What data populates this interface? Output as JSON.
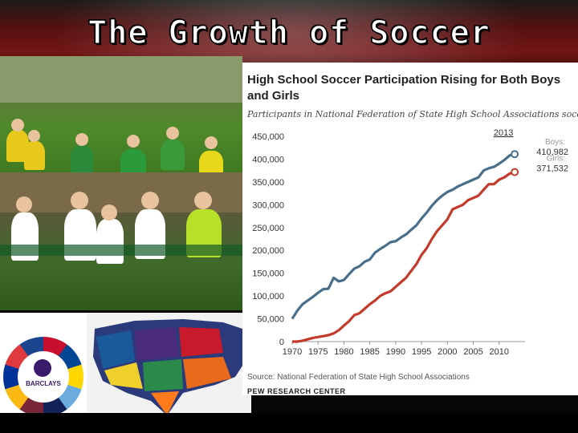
{
  "slide": {
    "title": "The Growth of Soccer"
  },
  "chart_data": {
    "type": "line",
    "title": "High School Soccer Participation Rising for Both Boys and Girls",
    "subtitle": "Participants in National Federation of State High School Associations soccer",
    "source": "Source: National Federation of State High School Associations",
    "org": "PEW RESEARCH CENTER",
    "x": [
      1970,
      1971,
      1972,
      1973,
      1974,
      1975,
      1976,
      1977,
      1978,
      1979,
      1980,
      1981,
      1982,
      1983,
      1984,
      1985,
      1986,
      1987,
      1988,
      1989,
      1990,
      1991,
      1992,
      1993,
      1994,
      1995,
      1996,
      1997,
      1998,
      1999,
      2000,
      2001,
      2002,
      2003,
      2004,
      2005,
      2006,
      2007,
      2008,
      2009,
      2010,
      2011,
      2012,
      2013
    ],
    "ylim": [
      0,
      450000
    ],
    "yticks": [
      0,
      50000,
      100000,
      150000,
      200000,
      250000,
      300000,
      350000,
      400000,
      450000
    ],
    "ytick_labels": [
      "0",
      "50,000",
      "100,000",
      "150,000",
      "200,000",
      "250,000",
      "300,000",
      "350,000",
      "400,000",
      "450,000"
    ],
    "xticks": [
      1970,
      1975,
      1980,
      1985,
      1990,
      1995,
      2000,
      2005,
      2010
    ],
    "xtick_labels": [
      "1970",
      "1975",
      "1980",
      "1985",
      "1990",
      "1995",
      "2000",
      "2005",
      "2010"
    ],
    "series": [
      {
        "name": "Boys",
        "color": "#4a6f8a",
        "values": [
          50000,
          68000,
          82000,
          90000,
          98000,
          107000,
          115000,
          116000,
          140000,
          132000,
          135000,
          148000,
          160000,
          165000,
          175000,
          180000,
          195000,
          203000,
          210000,
          218000,
          220000,
          228000,
          235000,
          245000,
          255000,
          270000,
          283000,
          298000,
          310000,
          320000,
          328000,
          333000,
          340000,
          345000,
          350000,
          355000,
          360000,
          375000,
          380000,
          383000,
          390000,
          398000,
          408000,
          410982
        ]
      },
      {
        "name": "Girls",
        "color": "#c43a2a",
        "values": [
          0,
          0,
          2000,
          5000,
          8000,
          10000,
          12000,
          14000,
          18000,
          25000,
          35000,
          45000,
          58000,
          62000,
          72000,
          82000,
          90000,
          100000,
          106000,
          110000,
          120000,
          130000,
          140000,
          155000,
          170000,
          190000,
          205000,
          225000,
          242000,
          255000,
          268000,
          290000,
          295000,
          300000,
          310000,
          315000,
          320000,
          333000,
          345000,
          345000,
          355000,
          360000,
          368000,
          371532
        ]
      }
    ],
    "annotation_year": "2013",
    "end_labels": [
      {
        "name": "Boys:",
        "value": "410,982"
      },
      {
        "name": "Girls:",
        "value": "371,532"
      }
    ]
  },
  "photos": {
    "premier_league_badge": "BARCLAYS"
  }
}
